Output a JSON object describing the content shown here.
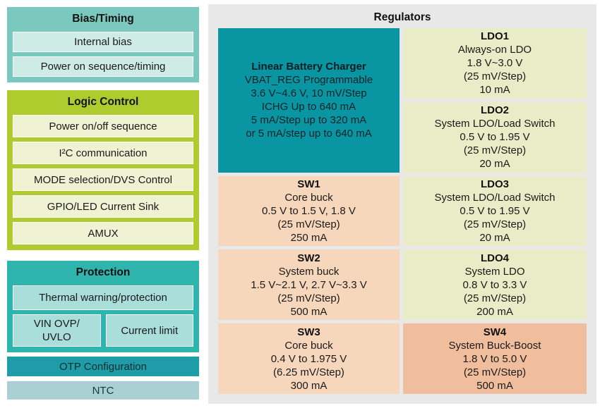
{
  "colors": {
    "page_bg": "#FFFFFF",
    "regulators_panel_bg": "#E7E8E7",
    "bias_outer": "#7BC9BE",
    "bias_inner": "#CFEBE5",
    "logic_outer": "#AFCB2E",
    "logic_inner": "#EFF3D4",
    "protection_outer": "#2FB4AE",
    "protection_inner": "#A9DEDA",
    "otp_bg": "#1E9DA8",
    "ntc_bg": "#ABD0D4",
    "charger_bg": "#0995A1",
    "ldo_bg": "#E9EDC7",
    "sw_bg": "#F7D7BC",
    "sw4_bg": "#F0BE9C"
  },
  "left_column": {
    "bias_timing": {
      "title": "Bias/Timing",
      "items": [
        "Internal bias",
        "Power on sequence/timing"
      ]
    },
    "logic_control": {
      "title": "Logic Control",
      "items": [
        "Power on/off sequence",
        "I²C communication",
        "MODE selection/DVS Control",
        "GPIO/LED Current Sink",
        "AMUX"
      ]
    },
    "protection": {
      "title": "Protection",
      "full_item": "Thermal warning/protection",
      "split_items": [
        "VIN OVP/\nUVLO",
        "Current limit"
      ]
    },
    "otp_label": "OTP Configuration",
    "ntc_label": "NTC"
  },
  "regulators": {
    "title": "Regulators",
    "blocks": [
      {
        "name": "Linear Battery Charger",
        "lines": [
          "VBAT_REG Programmable",
          "3.6 V~4.6 V, 10 mV/Step",
          "ICHG Up to 640 mA",
          "5 mA/Step up to 320 mA",
          "or 5 mA/step up to 640 mA"
        ]
      },
      {
        "name": "LDO1",
        "lines": [
          "Always-on LDO",
          "1.8 V~3.0 V",
          "(25 mV/Step)",
          "10 mA"
        ]
      },
      {
        "name": "LDO2",
        "lines": [
          "System LDO/Load Switch",
          "0.5 V to 1.95 V",
          "(25 mV/Step)",
          "20 mA"
        ]
      },
      {
        "name": "SW1",
        "lines": [
          "Core buck",
          "0.5 V to 1.5 V, 1.8 V",
          "(25 mV/Step)",
          "250 mA"
        ]
      },
      {
        "name": "LDO3",
        "lines": [
          "System LDO/Load Switch",
          "0.5 V to 1.95 V",
          "(25 mV/Step)",
          "20 mA"
        ]
      },
      {
        "name": "SW2",
        "lines": [
          "System buck",
          "1.5 V~2.1 V, 2.7 V~3.3 V",
          "(25 mV/Step)",
          "500 mA"
        ]
      },
      {
        "name": "LDO4",
        "lines": [
          "System LDO",
          "0.8 V to 3.3 V",
          "(25 mV/Step)",
          "200 mA"
        ]
      },
      {
        "name": "SW3",
        "lines": [
          "Core buck",
          "0.4 V to 1.975 V",
          "(6.25 mV/Step)",
          "300 mA"
        ]
      },
      {
        "name": "SW4",
        "lines": [
          "System Buck-Boost",
          "1.8 V to 5.0 V",
          "(25 mV/Step)",
          "500 mA"
        ]
      }
    ]
  }
}
